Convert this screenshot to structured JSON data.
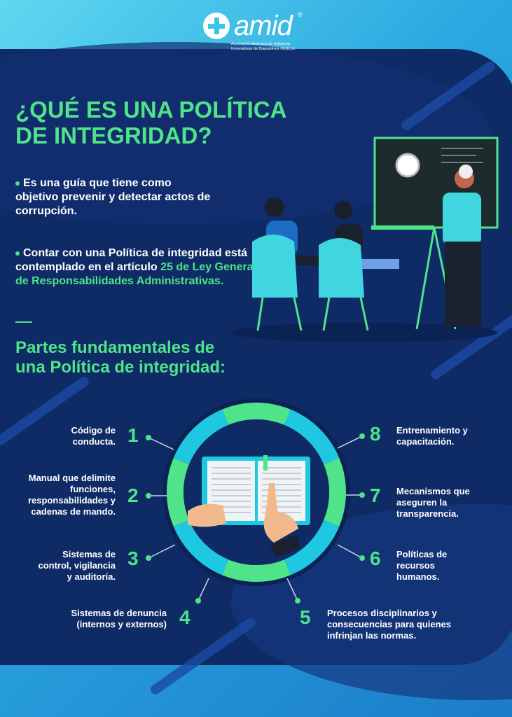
{
  "logo": {
    "name": "amid",
    "subtitle": "Asociación Mexicana de Industrias Innovadoras de Dispositivos Médicos."
  },
  "title": "¿QUÉ ES UNA POLÍTICA DE INTEGRIDAD?",
  "bullets": [
    {
      "text": "Es una guía que tiene como objetivo prevenir y detectar actos de corrupción."
    },
    {
      "text": "Contar con una Política de integridad está contemplado en el artículo ",
      "highlight": "25 de Ley General de Responsabilidades Administrativas."
    }
  ],
  "subtitle": "Partes fundamentales de una Política de integridad:",
  "parts": [
    {
      "n": "1",
      "text": "Código de conducta."
    },
    {
      "n": "2",
      "text": "Manual que delimite funciones, responsabilidades y cadenas de mando."
    },
    {
      "n": "3",
      "text": "Sistemas de control, vigilancia y auditoría."
    },
    {
      "n": "4",
      "text": "Sistemas de denuncia (internos y externos)"
    },
    {
      "n": "5",
      "text": "Procesos disciplinarios y consecuencias para quienes infrinjan las normas."
    },
    {
      "n": "6",
      "text": "Políticas de recursos humanos."
    },
    {
      "n": "7",
      "text": "Mecanismos que aseguren la transparencia."
    },
    {
      "n": "8",
      "text": "Entrenamiento y capacitación."
    }
  ],
  "colors": {
    "navy": "#0f2b66",
    "green": "#4fe38a",
    "cyan": "#1ec8e0"
  }
}
